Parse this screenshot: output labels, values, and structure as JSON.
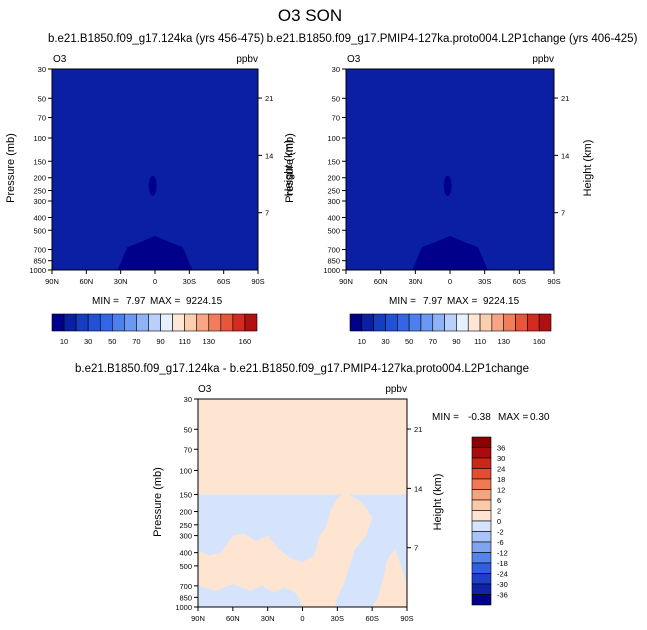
{
  "figure": {
    "title": "O3 SON"
  },
  "colors": {
    "upper_levels": [
      "#00008B",
      "#0A1FA4",
      "#163CC0",
      "#2250D8",
      "#3366E6",
      "#4D7FEE",
      "#6B98F2",
      "#8FB3F6",
      "#B9D0FA",
      "#E6F0FF",
      "#FFE6D6",
      "#FDCDB0",
      "#F9A584",
      "#F27D5C",
      "#E8553A",
      "#D42A20",
      "#B01010",
      "#8B0000"
    ],
    "diff_levels": [
      "#00008B",
      "#0F22A8",
      "#1E40C8",
      "#3060E0",
      "#5583EC",
      "#7EA4F2",
      "#A9C4F8",
      "#D5E4FC",
      "#FDE5D2",
      "#FBC8A8",
      "#F7A47C",
      "#F07A52",
      "#E44E30",
      "#CC2618",
      "#A80C0C",
      "#8B0000"
    ],
    "diff_background": "#FDE5D2",
    "diff_pale_blue": "#D5E4FC"
  },
  "chart_data": [
    {
      "type": "heatmap",
      "title": "b.e21.B1850.f09_g17.124ka (yrs 456-475)",
      "left_label": "O3",
      "right_label": "ppbv",
      "ylabel": "Pressure (mb)",
      "ylabel_right": "Height (km)",
      "x_ticks": [
        "90N",
        "60N",
        "30N",
        "0",
        "30S",
        "60S",
        "90S"
      ],
      "x_range": [
        90,
        -90
      ],
      "y_ticks": [
        30,
        50,
        70,
        100,
        150,
        200,
        250,
        300,
        400,
        500,
        700,
        850,
        1000
      ],
      "y_range": [
        30,
        1000
      ],
      "y_scale": "log",
      "height_ticks": [
        21,
        14,
        7
      ],
      "contour_levels": [
        10,
        20,
        30,
        40,
        50,
        60,
        70,
        80,
        90,
        100,
        110,
        120,
        130,
        140,
        150,
        160
      ],
      "colorbar_labels": [
        10,
        30,
        50,
        70,
        90,
        110,
        130,
        160
      ],
      "min_label": "MIN =",
      "min": "7.97",
      "max_label": "MAX =",
      "max": "9224.15"
    },
    {
      "type": "heatmap",
      "title": "b.e21.B1850.f09_g17.PMIP4-127ka.proto004.L2P1change (yrs 406-425)",
      "left_label": "O3",
      "right_label": "ppbv",
      "ylabel": "Pressure (mb)",
      "ylabel_right": "Height (km)",
      "x_ticks": [
        "90N",
        "60N",
        "30N",
        "0",
        "30S",
        "60S",
        "90S"
      ],
      "x_range": [
        90,
        -90
      ],
      "y_ticks": [
        30,
        50,
        70,
        100,
        150,
        200,
        250,
        300,
        400,
        500,
        700,
        850,
        1000
      ],
      "y_range": [
        30,
        1000
      ],
      "y_scale": "log",
      "height_ticks": [
        21,
        14,
        7
      ],
      "contour_levels": [
        10,
        20,
        30,
        40,
        50,
        60,
        70,
        80,
        90,
        100,
        110,
        120,
        130,
        140,
        150,
        160
      ],
      "colorbar_labels": [
        10,
        30,
        50,
        70,
        90,
        110,
        130,
        160
      ],
      "min_label": "MIN =",
      "min": "7.97",
      "max_label": "MAX =",
      "max": "9224.15"
    },
    {
      "type": "heatmap",
      "title": "b.e21.B1850.f09_g17.124ka - b.e21.B1850.f09_g17.PMIP4-127ka.proto004.L2P1change",
      "left_label": "O3",
      "right_label": "ppbv",
      "ylabel": "Pressure (mb)",
      "ylabel_right": "Height (km)",
      "x_ticks": [
        "90N",
        "60N",
        "30N",
        "0",
        "30S",
        "60S",
        "90S"
      ],
      "x_range": [
        90,
        -90
      ],
      "y_ticks": [
        30,
        50,
        70,
        100,
        150,
        200,
        250,
        300,
        400,
        500,
        700,
        850,
        1000
      ],
      "y_range": [
        30,
        1000
      ],
      "y_scale": "log",
      "height_ticks": [
        21,
        14,
        7
      ],
      "contour_levels": [
        -36,
        -30,
        -24,
        -18,
        -12,
        -6,
        -2,
        0,
        2,
        6,
        12,
        18,
        24,
        30,
        36
      ],
      "colorbar_labels": [
        36,
        30,
        24,
        18,
        12,
        6,
        2,
        0,
        -2,
        -6,
        -12,
        -18,
        -24,
        -30,
        -36
      ],
      "min_label": "MIN =",
      "min": "-0.38",
      "max_label": "MAX =",
      "max": "0.30"
    }
  ]
}
